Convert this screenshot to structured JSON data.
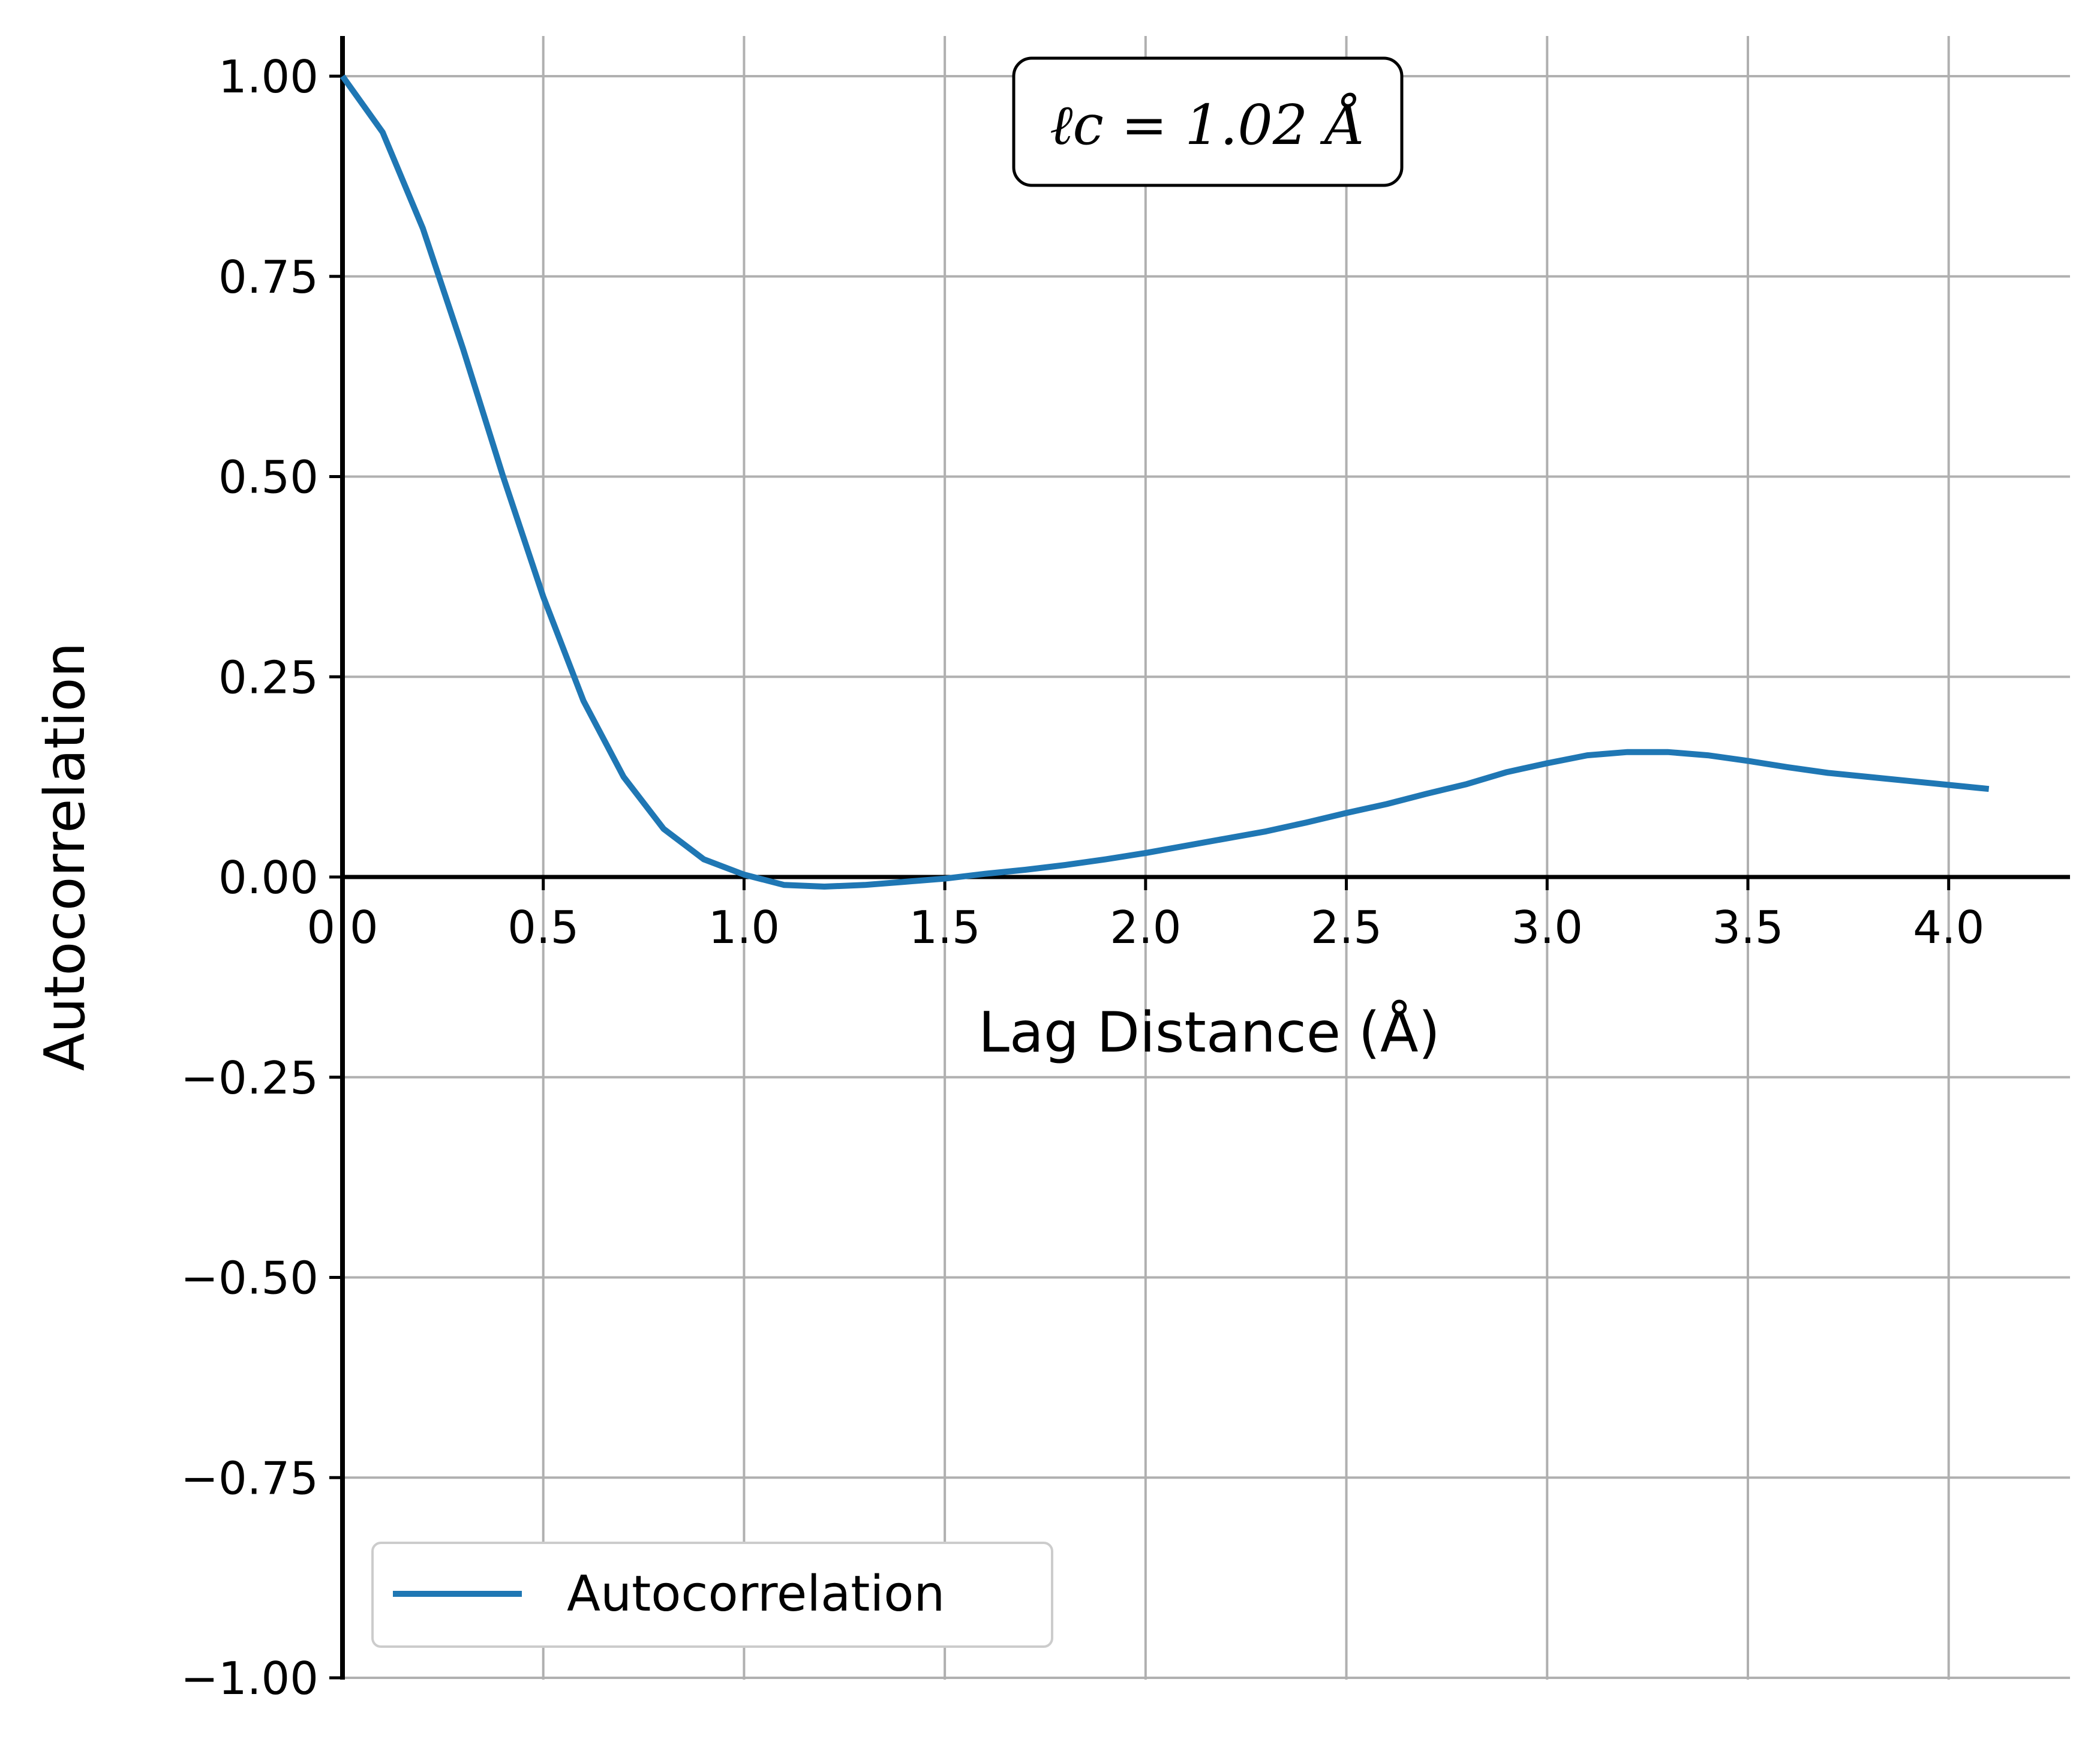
{
  "chart_data": {
    "type": "line",
    "title": "",
    "xlabel": "Lag Distance (Å)",
    "ylabel": "Autocorrelation",
    "xlim": [
      0,
      4.32
    ],
    "ylim": [
      -1.0,
      1.0
    ],
    "xticks": [
      "0.0",
      "0.5",
      "1.0",
      "1.5",
      "2.0",
      "2.5",
      "3.0",
      "3.5",
      "4.0"
    ],
    "yticks": [
      "1.00",
      "0.75",
      "0.50",
      "0.25",
      "0.00",
      "−0.25",
      "−0.50",
      "−0.75",
      "−1.00"
    ],
    "grid": true,
    "legend_position": "lower-left",
    "annotation": "ℓc = 1.02 Å",
    "series": [
      {
        "name": "Autocorrelation",
        "color": "#1f77b4",
        "x": [
          0.0,
          0.1,
          0.2,
          0.3,
          0.4,
          0.5,
          0.6,
          0.7,
          0.8,
          0.9,
          1.0,
          1.1,
          1.2,
          1.3,
          1.4,
          1.5,
          1.6,
          1.7,
          1.8,
          1.9,
          2.0,
          2.1,
          2.2,
          2.3,
          2.4,
          2.5,
          2.6,
          2.7,
          2.8,
          2.9,
          3.0,
          3.1,
          3.2,
          3.3,
          3.4,
          3.5,
          3.6,
          3.7,
          3.8,
          3.9,
          4.0,
          4.1
        ],
        "y": [
          1.0,
          0.93,
          0.81,
          0.66,
          0.5,
          0.35,
          0.22,
          0.125,
          0.06,
          0.022,
          0.003,
          -0.01,
          -0.012,
          -0.01,
          -0.006,
          -0.002,
          0.004,
          0.009,
          0.015,
          0.022,
          0.03,
          0.039,
          0.048,
          0.057,
          0.068,
          0.08,
          0.091,
          0.104,
          0.116,
          0.131,
          0.142,
          0.152,
          0.156,
          0.156,
          0.152,
          0.145,
          0.137,
          0.13,
          0.125,
          0.12,
          0.115,
          0.11
        ]
      }
    ]
  }
}
